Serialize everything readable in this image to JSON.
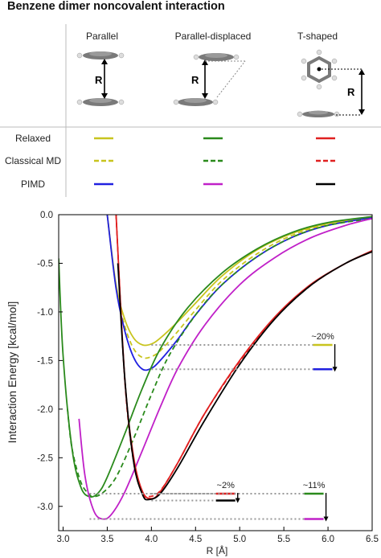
{
  "title": "Benzene dimer noncovalent interaction",
  "header": {
    "columns": [
      "Parallel",
      "Parallel-displaced",
      "T-shaped"
    ],
    "distance_label": "R"
  },
  "legend_table": {
    "methods": [
      {
        "label": "Relaxed",
        "style": "solid"
      },
      {
        "label": "Classical MD",
        "style": "dashed"
      },
      {
        "label": "PIMD",
        "style": "solid"
      }
    ],
    "colors": [
      [
        "#c8c41e",
        "#2a8a1c",
        "#e02020"
      ],
      [
        "#c8c41e",
        "#2a8a1c",
        "#e02020"
      ],
      [
        "#2020e0",
        "#c020c8",
        "#000000"
      ]
    ]
  },
  "chart_data": {
    "type": "line",
    "title": "",
    "xlabel": "R [Å]",
    "ylabel": "Interaction Energy [kcal/mol]",
    "xlim": [
      2.95,
      6.5
    ],
    "ylim": [
      -3.25,
      0.0
    ],
    "xticks": [
      "3.0",
      "3.5",
      "4.0",
      "4.5",
      "5.0",
      "5.5",
      "6.0",
      "6.5"
    ],
    "yticks": [
      "0.0",
      "-0.5",
      "-1.0",
      "-1.5",
      "-2.0",
      "-2.5",
      "-3.0"
    ],
    "grid": false,
    "series": [
      {
        "color": "#c8c41e",
        "style": "solid",
        "points": [
          [
            3.5,
            0.0
          ],
          [
            3.6,
            -0.72
          ],
          [
            3.7,
            -1.08
          ],
          [
            3.8,
            -1.27
          ],
          [
            3.9,
            -1.34
          ],
          [
            4.0,
            -1.33
          ],
          [
            4.1,
            -1.27
          ],
          [
            4.3,
            -1.1
          ],
          [
            4.5,
            -0.91
          ],
          [
            4.8,
            -0.63
          ],
          [
            5.2,
            -0.36
          ],
          [
            5.6,
            -0.19
          ],
          [
            6.0,
            -0.09
          ],
          [
            6.5,
            -0.02
          ]
        ]
      },
      {
        "color": "#c8c41e",
        "style": "dashed",
        "points": [
          [
            3.5,
            0.0
          ],
          [
            3.6,
            -0.75
          ],
          [
            3.7,
            -1.15
          ],
          [
            3.8,
            -1.38
          ],
          [
            3.9,
            -1.47
          ],
          [
            4.0,
            -1.46
          ],
          [
            4.1,
            -1.4
          ],
          [
            4.3,
            -1.2
          ],
          [
            4.5,
            -0.98
          ],
          [
            4.8,
            -0.68
          ],
          [
            5.2,
            -0.4
          ],
          [
            5.6,
            -0.21
          ],
          [
            6.0,
            -0.1
          ],
          [
            6.5,
            -0.03
          ]
        ]
      },
      {
        "color": "#2020e0",
        "style": "solid",
        "points": [
          [
            3.5,
            0.0
          ],
          [
            3.6,
            -0.76
          ],
          [
            3.7,
            -1.2
          ],
          [
            3.8,
            -1.47
          ],
          [
            3.9,
            -1.59
          ],
          [
            4.0,
            -1.58
          ],
          [
            4.1,
            -1.5
          ],
          [
            4.3,
            -1.28
          ],
          [
            4.5,
            -1.03
          ],
          [
            4.8,
            -0.72
          ],
          [
            5.2,
            -0.43
          ],
          [
            5.6,
            -0.23
          ],
          [
            6.0,
            -0.11
          ],
          [
            6.5,
            -0.03
          ]
        ]
      },
      {
        "color": "#2a8a1c",
        "style": "solid",
        "points": [
          [
            2.95,
            -0.45
          ],
          [
            3.0,
            -1.45
          ],
          [
            3.1,
            -2.4
          ],
          [
            3.2,
            -2.8
          ],
          [
            3.3,
            -2.9
          ],
          [
            3.4,
            -2.86
          ],
          [
            3.5,
            -2.7
          ],
          [
            3.7,
            -2.25
          ],
          [
            3.9,
            -1.78
          ],
          [
            4.1,
            -1.38
          ],
          [
            4.4,
            -0.97
          ],
          [
            4.8,
            -0.6
          ],
          [
            5.2,
            -0.35
          ],
          [
            5.6,
            -0.18
          ],
          [
            6.0,
            -0.08
          ],
          [
            6.5,
            -0.02
          ]
        ]
      },
      {
        "color": "#2a8a1c",
        "style": "dashed",
        "points": [
          [
            3.05,
            -2.0
          ],
          [
            3.1,
            -2.4
          ],
          [
            3.2,
            -2.75
          ],
          [
            3.3,
            -2.88
          ],
          [
            3.35,
            -2.9
          ],
          [
            3.45,
            -2.86
          ],
          [
            3.6,
            -2.7
          ],
          [
            3.8,
            -2.3
          ],
          [
            4.0,
            -1.85
          ],
          [
            4.2,
            -1.45
          ],
          [
            4.5,
            -1.03
          ],
          [
            4.8,
            -0.72
          ],
          [
            5.2,
            -0.43
          ],
          [
            5.6,
            -0.23
          ],
          [
            6.0,
            -0.11
          ],
          [
            6.5,
            -0.04
          ]
        ]
      },
      {
        "color": "#c020c8",
        "style": "solid",
        "points": [
          [
            3.18,
            -2.1
          ],
          [
            3.25,
            -2.7
          ],
          [
            3.35,
            -3.05
          ],
          [
            3.45,
            -3.13
          ],
          [
            3.55,
            -3.08
          ],
          [
            3.7,
            -2.85
          ],
          [
            3.9,
            -2.42
          ],
          [
            4.1,
            -1.98
          ],
          [
            4.3,
            -1.58
          ],
          [
            4.6,
            -1.14
          ],
          [
            5.0,
            -0.72
          ],
          [
            5.4,
            -0.44
          ],
          [
            5.8,
            -0.24
          ],
          [
            6.2,
            -0.11
          ],
          [
            6.5,
            -0.04
          ]
        ]
      },
      {
        "color": "#e02020",
        "style": "solid",
        "points": [
          [
            3.6,
            0.0
          ],
          [
            3.7,
            -1.7
          ],
          [
            3.8,
            -2.5
          ],
          [
            3.9,
            -2.85
          ],
          [
            4.0,
            -2.92
          ],
          [
            4.1,
            -2.85
          ],
          [
            4.3,
            -2.55
          ],
          [
            4.6,
            -2.05
          ],
          [
            5.0,
            -1.5
          ],
          [
            5.4,
            -1.05
          ],
          [
            5.8,
            -0.72
          ],
          [
            6.2,
            -0.5
          ],
          [
            6.5,
            -0.37
          ]
        ]
      },
      {
        "color": "#e02020",
        "style": "dashed",
        "points": [
          [
            3.6,
            0.0
          ],
          [
            3.7,
            -1.72
          ],
          [
            3.8,
            -2.55
          ],
          [
            3.9,
            -2.87
          ],
          [
            3.97,
            -2.9
          ],
          [
            4.1,
            -2.84
          ],
          [
            4.3,
            -2.55
          ],
          [
            4.6,
            -2.05
          ],
          [
            5.0,
            -1.51
          ],
          [
            5.4,
            -1.06
          ],
          [
            5.8,
            -0.73
          ],
          [
            6.2,
            -0.5
          ],
          [
            6.5,
            -0.38
          ]
        ]
      },
      {
        "color": "#000000",
        "style": "solid",
        "points": [
          [
            3.62,
            -0.5
          ],
          [
            3.7,
            -1.7
          ],
          [
            3.8,
            -2.55
          ],
          [
            3.9,
            -2.88
          ],
          [
            3.97,
            -2.93
          ],
          [
            4.1,
            -2.87
          ],
          [
            4.3,
            -2.6
          ],
          [
            4.6,
            -2.12
          ],
          [
            5.0,
            -1.54
          ],
          [
            5.4,
            -1.07
          ],
          [
            5.8,
            -0.73
          ],
          [
            6.2,
            -0.5
          ],
          [
            6.5,
            -0.38
          ]
        ]
      }
    ],
    "annotations": [
      {
        "text": "~20%",
        "from": -1.34,
        "to": -1.59,
        "color_from": "#c8c41e",
        "color_to": "#2020e0",
        "x_line": [
          4.0,
          6.05
        ]
      },
      {
        "text": "~2%",
        "from": -2.87,
        "to": -2.94,
        "color_from": "#e02020",
        "color_to": "#000000",
        "x_line": [
          4.0,
          4.95
        ]
      },
      {
        "text": "~11%",
        "from": -2.87,
        "to": -3.13,
        "color_from": "#2a8a1c",
        "color_to": "#c020c8",
        "x_line": [
          3.3,
          5.95
        ]
      }
    ]
  }
}
